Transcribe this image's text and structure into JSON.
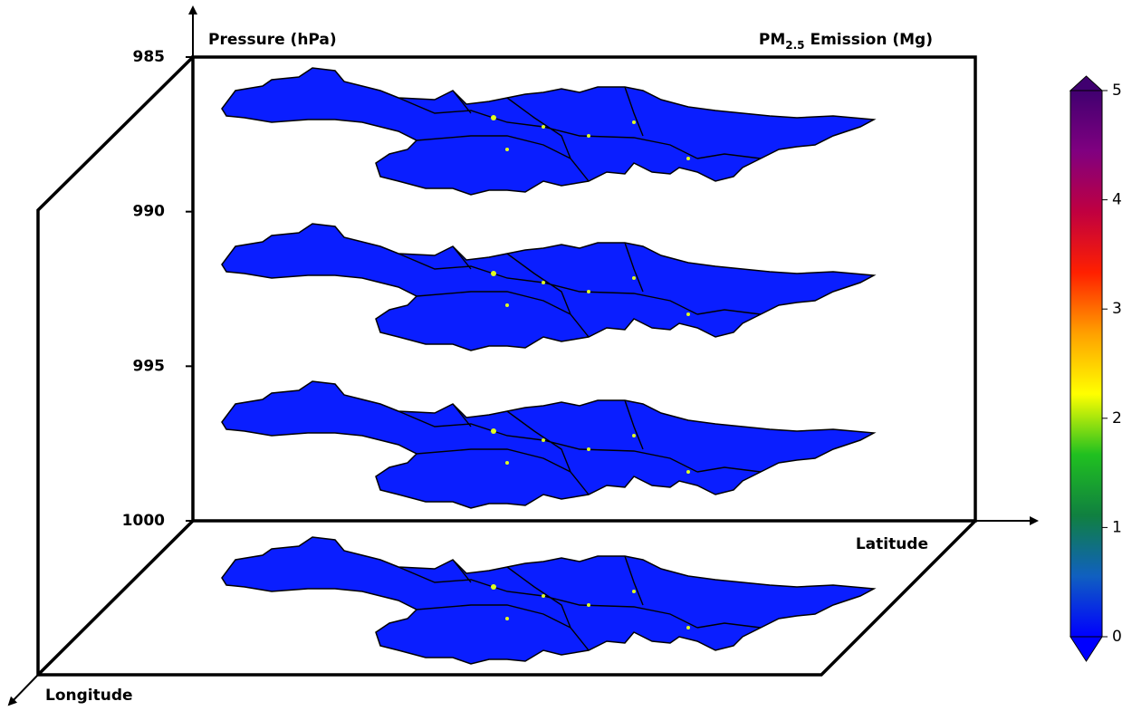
{
  "chart_data": {
    "type": "layered-map",
    "title_parts": [
      "PM",
      "2.5",
      " Emission (Mg)"
    ],
    "z_label": "Pressure (hPa)",
    "x_label": "Latitude",
    "y_label": "Longitude",
    "zlim": [
      985,
      1000
    ],
    "zticks": [
      985,
      990,
      995,
      1000
    ],
    "clim": [
      0,
      5
    ],
    "cticks": [
      0,
      1,
      2,
      3,
      4,
      5
    ],
    "colormap": [
      "#0000ff",
      "#1060c0",
      "#108040",
      "#20c020",
      "#ffff00",
      "#ffa000",
      "#ff2000",
      "#c00040",
      "#800080",
      "#400070"
    ]
  }
}
